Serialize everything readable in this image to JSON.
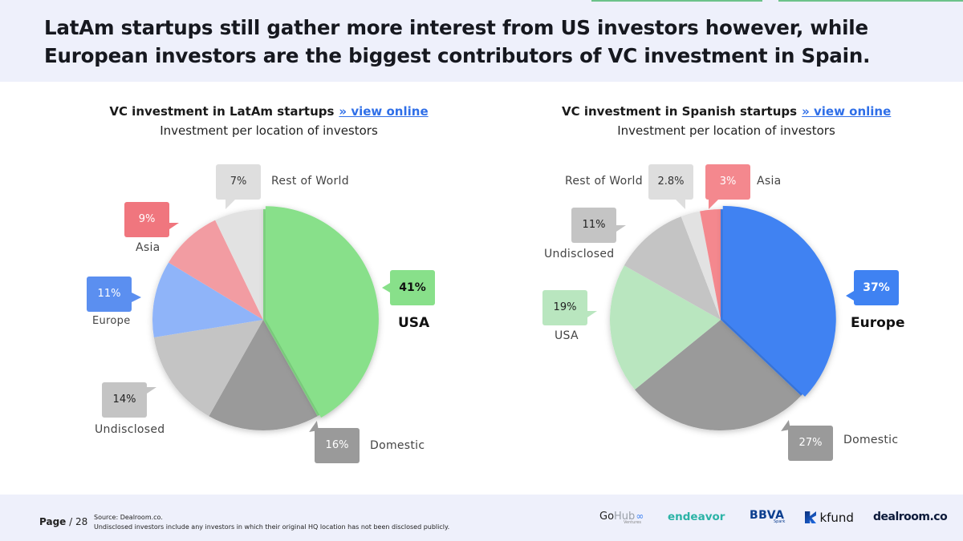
{
  "header": {
    "title_line1": "LatAm startups still gather more interest from US investors however, while",
    "title_line2": "European investors are the biggest contributors of VC investment in Spain."
  },
  "chart_data": [
    {
      "type": "pie",
      "title": "VC investment in LatAm startups",
      "link": "» view online",
      "subtitle": "Investment per location of investors",
      "slices": [
        {
          "label": "USA",
          "value": 41,
          "pct": "41%",
          "color": "#88e08a"
        },
        {
          "label": "Domestic",
          "value": 16,
          "pct": "16%",
          "color": "#9a9a9a"
        },
        {
          "label": "Undisclosed",
          "value": 14,
          "pct": "14%",
          "color": "#c4c4c4"
        },
        {
          "label": "Europe",
          "value": 11,
          "pct": "11%",
          "color": "#8fb4f9"
        },
        {
          "label": "Asia",
          "value": 9,
          "pct": "9%",
          "color": "#f29ca2"
        },
        {
          "label": "Rest of World",
          "value": 7,
          "pct": "7%",
          "color": "#e2e2e2"
        }
      ]
    },
    {
      "type": "pie",
      "title": "VC investment in Spanish startups",
      "link": "» view online",
      "subtitle": "Investment per location of investors",
      "slices": [
        {
          "label": "Europe",
          "value": 37,
          "pct": "37%",
          "color": "#3f82f2"
        },
        {
          "label": "Domestic",
          "value": 27,
          "pct": "27%",
          "color": "#9a9a9a"
        },
        {
          "label": "USA",
          "value": 19,
          "pct": "19%",
          "color": "#b9e6bf"
        },
        {
          "label": "Undisclosed",
          "value": 11,
          "pct": "11%",
          "color": "#c4c4c4"
        },
        {
          "label": "Rest of World",
          "value": 2.8,
          "pct": "2.8%",
          "color": "#e2e2e2"
        },
        {
          "label": "Asia",
          "value": 3,
          "pct": "3%",
          "color": "#f4888e"
        }
      ]
    }
  ],
  "footer": {
    "page_label": "Page",
    "page_number": "/ 28",
    "source_line1": "Source: Dealroom.co.",
    "source_line2": "Undisclosed investors include any investors in which their original HQ location has not been disclosed publicly.",
    "logos": {
      "gohub_go": "Go",
      "gohub_hub": "Hub",
      "gohub_sub": "Ventures",
      "endeavor": "endeavor",
      "bbva": "BBVA",
      "bbva_sub": "Spark",
      "kfund": "kfund",
      "dealroom": "dealroom.co"
    }
  }
}
